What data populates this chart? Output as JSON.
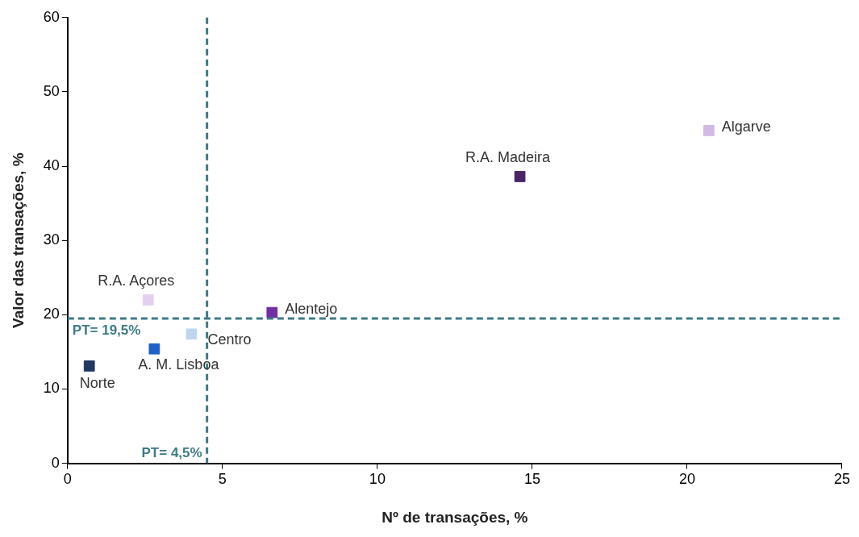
{
  "chart_data": {
    "type": "scatter",
    "xlabel": "Nº de transações, %",
    "ylabel": "Valor das transações, %",
    "xlim": [
      0,
      25
    ],
    "xticks": [
      0,
      5,
      10,
      15,
      20,
      25
    ],
    "ylim": [
      0,
      60
    ],
    "yticks": [
      0,
      10,
      20,
      30,
      40,
      50,
      60
    ],
    "grid": false,
    "legend": false,
    "marker": "square",
    "series": [
      {
        "name": "Norte",
        "color": "#1f3864",
        "x": [
          0.7
        ],
        "values": [
          13.1
        ]
      },
      {
        "name": "A. M. Lisboa",
        "color": "#1f5fc8",
        "x": [
          2.8
        ],
        "values": [
          15.4
        ]
      },
      {
        "name": "Centro",
        "color": "#bdd7ee",
        "x": [
          4.0
        ],
        "values": [
          17.4
        ]
      },
      {
        "name": "R.A. Açores",
        "color": "#e2d0ee",
        "x": [
          2.6
        ],
        "values": [
          22.0
        ]
      },
      {
        "name": "Alentejo",
        "color": "#7030a0",
        "x": [
          6.6
        ],
        "values": [
          20.3
        ]
      },
      {
        "name": "R.A. Madeira",
        "color": "#4b2466",
        "x": [
          14.6
        ],
        "values": [
          38.6
        ]
      },
      {
        "name": "Algarve",
        "color": "#d3b9e6",
        "x": [
          20.7
        ],
        "values": [
          44.8
        ]
      }
    ],
    "ref_lines": [
      {
        "axis": "y",
        "value": 19.5,
        "label": "PT= 19,5%",
        "color": "#3d7a85",
        "line_style": "dashed"
      },
      {
        "axis": "x",
        "value": 4.5,
        "label": "PT= 4,5%",
        "color": "#3d7a85",
        "line_style": "dashed"
      }
    ]
  }
}
